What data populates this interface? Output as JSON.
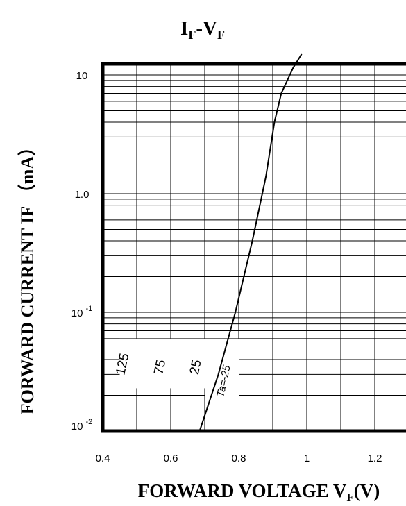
{
  "chart_data": {
    "type": "line",
    "title": {
      "main": "I",
      "sub1": "F",
      "sep": "-V",
      "sub2": "F"
    },
    "xlabel": {
      "main": "FORWARD VOLTAGE  V",
      "sub": "F",
      "tail": "(V)"
    },
    "ylabel": "FORWARD CURRENT IF  （mA）",
    "x_ticks": [
      "0.4",
      "0.6",
      "0.8",
      "1",
      "1.2"
    ],
    "x_tick_values": [
      0.4,
      0.6,
      0.8,
      1.0,
      1.2
    ],
    "y_ticks": [
      {
        "value": 10,
        "base": "10",
        "exp": ""
      },
      {
        "value": 1,
        "base": "1.0",
        "exp": ""
      },
      {
        "value": 0.1,
        "base": "10",
        "exp": "-1"
      },
      {
        "value": 0.01,
        "base": "10",
        "exp": "-2"
      }
    ],
    "xlim": [
      0.4,
      1.2
    ],
    "ylim": [
      0.01,
      20
    ],
    "y_scale": "log",
    "grid": true,
    "series": [
      {
        "x": [
          0.685,
          0.74,
          0.79,
          0.84,
          0.88,
          0.905,
          0.925,
          0.96,
          0.985
        ],
        "y": [
          0.01,
          0.03,
          0.1,
          0.4,
          1.4,
          4.0,
          7.0,
          11.5,
          15.0
        ]
      }
    ],
    "annotations": [
      {
        "text": "125",
        "x": 0.47,
        "y": 0.036
      },
      {
        "text": "75",
        "x": 0.58,
        "y": 0.034
      },
      {
        "text": "25",
        "x": 0.685,
        "y": 0.034
      },
      {
        "text": "Ta=-25",
        "x": 0.765,
        "y": 0.026
      }
    ]
  }
}
